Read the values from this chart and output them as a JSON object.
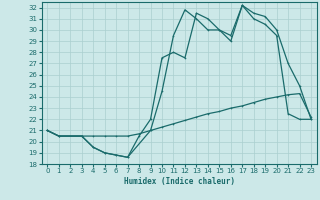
{
  "xlabel": "Humidex (Indice chaleur)",
  "background_color": "#cce8e8",
  "grid_color": "#aacfcf",
  "line_color": "#1a6b6b",
  "xlim": [
    -0.5,
    23.5
  ],
  "ylim": [
    18,
    32.5
  ],
  "yticks": [
    18,
    19,
    20,
    21,
    22,
    23,
    24,
    25,
    26,
    27,
    28,
    29,
    30,
    31,
    32
  ],
  "xticks": [
    0,
    1,
    2,
    3,
    4,
    5,
    6,
    7,
    8,
    9,
    10,
    11,
    12,
    13,
    14,
    15,
    16,
    17,
    18,
    19,
    20,
    21,
    22,
    23
  ],
  "s1x": [
    0,
    1,
    3,
    4,
    5,
    6,
    7,
    8,
    9,
    10,
    11,
    12,
    13,
    14,
    15,
    16,
    17,
    18,
    19,
    20,
    21,
    22,
    23
  ],
  "s1y": [
    21.0,
    20.5,
    20.5,
    19.5,
    19.0,
    18.8,
    18.6,
    20.5,
    22.0,
    27.5,
    28.0,
    27.5,
    31.5,
    31.0,
    30.0,
    29.5,
    32.2,
    31.0,
    30.5,
    29.5,
    22.5,
    22.0,
    22.0
  ],
  "s2x": [
    0,
    1,
    3,
    4,
    5,
    6,
    7,
    8,
    9,
    10,
    11,
    12,
    13,
    14,
    15,
    16,
    17,
    18,
    19,
    20,
    21,
    22,
    23
  ],
  "s2y": [
    21.0,
    20.5,
    20.5,
    20.5,
    20.5,
    20.5,
    20.5,
    20.7,
    21.0,
    21.3,
    21.6,
    21.9,
    22.2,
    22.5,
    22.7,
    23.0,
    23.2,
    23.5,
    23.8,
    24.0,
    24.2,
    24.3,
    22.2
  ],
  "s3x": [
    0,
    1,
    3,
    4,
    5,
    6,
    7,
    9,
    10,
    11,
    12,
    13,
    14,
    15,
    16,
    17,
    18,
    19,
    20,
    21,
    22,
    23
  ],
  "s3y": [
    21.0,
    20.5,
    20.5,
    19.5,
    19.0,
    18.8,
    18.6,
    21.0,
    24.5,
    29.5,
    31.8,
    31.0,
    30.0,
    30.0,
    29.0,
    32.2,
    31.5,
    31.2,
    30.0,
    27.0,
    25.0,
    22.0
  ]
}
